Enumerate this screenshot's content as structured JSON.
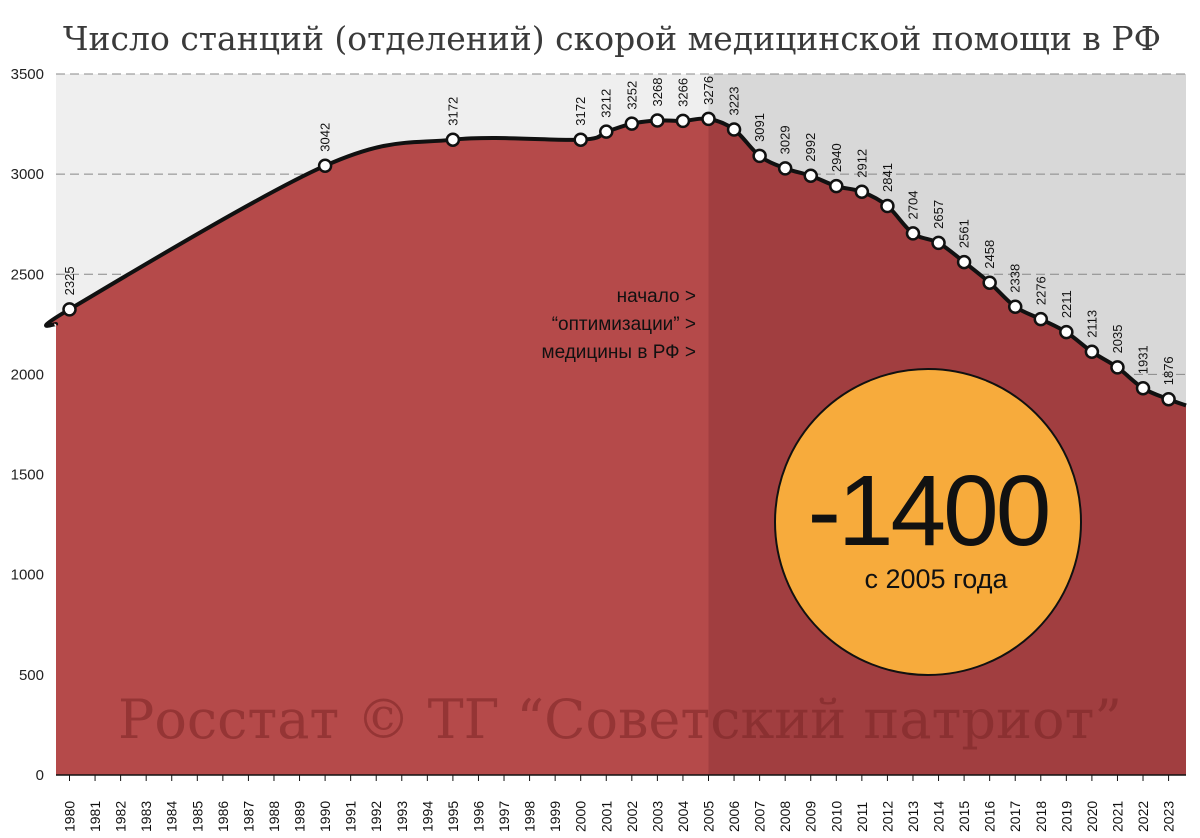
{
  "chart_data": {
    "type": "area",
    "title": "Число станций (отделений) скорой медицинской помощи в РФ",
    "xlabel": "",
    "ylabel": "",
    "ylim": [
      0,
      3500
    ],
    "yticks": [
      0,
      500,
      1000,
      1500,
      2000,
      2500,
      3000,
      3500
    ],
    "grid": true,
    "x": [
      1980,
      1981,
      1982,
      1983,
      1984,
      1985,
      1986,
      1987,
      1988,
      1989,
      1990,
      1991,
      1992,
      1993,
      1994,
      1995,
      1996,
      1997,
      1998,
      1999,
      2000,
      2001,
      2002,
      2003,
      2004,
      2005,
      2006,
      2007,
      2008,
      2009,
      2010,
      2011,
      2012,
      2013,
      2014,
      2015,
      2016,
      2017,
      2018,
      2019,
      2020,
      2021,
      2022,
      2023
    ],
    "series": [
      {
        "name": "",
        "points": [
          {
            "x": 1980,
            "y": 2325
          },
          {
            "x": 1990,
            "y": 3042
          },
          {
            "x": 1995,
            "y": 3172
          },
          {
            "x": 2000,
            "y": 3172
          },
          {
            "x": 2001,
            "y": 3212
          },
          {
            "x": 2002,
            "y": 3252
          },
          {
            "x": 2003,
            "y": 3268
          },
          {
            "x": 2004,
            "y": 3266
          },
          {
            "x": 2005,
            "y": 3276
          },
          {
            "x": 2006,
            "y": 3223
          },
          {
            "x": 2007,
            "y": 3091
          },
          {
            "x": 2008,
            "y": 3029
          },
          {
            "x": 2009,
            "y": 2992
          },
          {
            "x": 2010,
            "y": 2940
          },
          {
            "x": 2011,
            "y": 2912
          },
          {
            "x": 2012,
            "y": 2841
          },
          {
            "x": 2013,
            "y": 2704
          },
          {
            "x": 2014,
            "y": 2657
          },
          {
            "x": 2015,
            "y": 2561
          },
          {
            "x": 2016,
            "y": 2458
          },
          {
            "x": 2017,
            "y": 2338
          },
          {
            "x": 2018,
            "y": 2276
          },
          {
            "x": 2019,
            "y": 2211
          },
          {
            "x": 2020,
            "y": 2113
          },
          {
            "x": 2021,
            "y": 2035
          },
          {
            "x": 2022,
            "y": 1931
          },
          {
            "x": 2023,
            "y": 1876
          }
        ]
      }
    ],
    "highlight_from_year": 2005,
    "annotation_lines": [
      "начало >",
      "“оптимизации” >",
      "медицины в РФ >"
    ],
    "badge": {
      "value": "-1400",
      "caption": "с 2005 года"
    },
    "watermark": "Росстат © ТГ “Советский патриот”",
    "colors": {
      "area": "#b54a4a",
      "area_highlight": "#a13e40",
      "bg": "#efefef",
      "bg_highlight": "#d8d8d8",
      "line": "#111111",
      "badge": "#f7ab3c"
    }
  }
}
